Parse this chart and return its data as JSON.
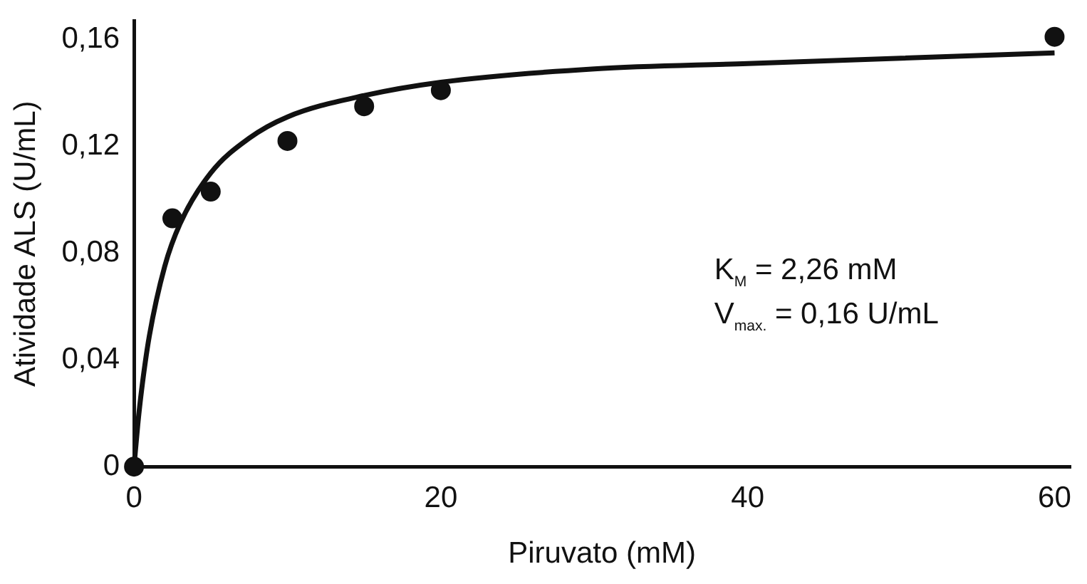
{
  "chart_data": {
    "type": "scatter",
    "xlabel": "Piruvato (mM)",
    "ylabel": "Atividade ALS (U/mL)",
    "xlim": [
      0,
      61
    ],
    "xticks": [
      0,
      20,
      40,
      60
    ],
    "ylim": [
      0,
      0.167
    ],
    "yticks": [
      0,
      {
        "value": 0.04,
        "label": "0,04"
      },
      {
        "value": 0.08,
        "label": "0,08"
      },
      {
        "value": 0.12,
        "label": "0,12"
      },
      {
        "value": 0.16,
        "label": "0,16"
      }
    ],
    "grid": false,
    "legend": false,
    "series": [
      {
        "color": "#111111",
        "marker": "circle",
        "x": [
          0,
          2.5,
          5,
          10,
          15,
          20,
          60
        ],
        "values": [
          0,
          0.093,
          0.103,
          0.122,
          0.135,
          0.141,
          0.161
        ]
      },
      {
        "type": "line",
        "color": "#111111",
        "marker": "none",
        "line_style": "solid",
        "x": [
          0,
          0.25,
          0.5,
          1,
          2,
          3,
          5,
          7.5,
          10,
          15,
          20,
          30,
          40,
          60
        ],
        "values": [
          0,
          0.016,
          0.029,
          0.049,
          0.075,
          0.091,
          0.11,
          0.123,
          0.131,
          0.139,
          0.144,
          0.149,
          0.151,
          0.155
        ]
      }
    ],
    "annotations": [
      "K$_{M}$ = 2,26 mM",
      "V$_{max.}$ = 0,16 U/mL"
    ]
  }
}
